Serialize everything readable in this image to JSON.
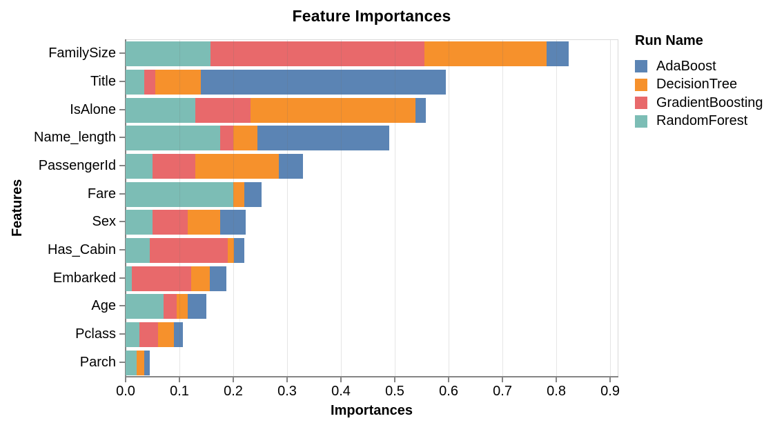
{
  "chart_data": {
    "type": "bar",
    "orientation": "horizontal",
    "stacked": true,
    "title": "Feature Importances",
    "xlabel": "Importances",
    "ylabel": "Features",
    "legend_title": "Run Name",
    "legend_position": "right",
    "grid": true,
    "xlim": [
      0,
      0.914
    ],
    "xticks": [
      0.0,
      0.1,
      0.2,
      0.3,
      0.4,
      0.5,
      0.6,
      0.7,
      0.8,
      0.9
    ],
    "xtick_labels": [
      "0.0",
      "0.1",
      "0.2",
      "0.3",
      "0.4",
      "0.5",
      "0.6",
      "0.7",
      "0.8",
      "0.9"
    ],
    "categories": [
      "FamilySize",
      "Title",
      "IsAlone",
      "Name_length",
      "PassengerId",
      "Fare",
      "Sex",
      "Has_Cabin",
      "Embarked",
      "Age",
      "Pclass",
      "Parch"
    ],
    "stack_order": [
      "RandomForest",
      "GradientBoosting",
      "DecisionTree",
      "AdaBoost"
    ],
    "series": [
      {
        "name": "AdaBoost",
        "color": "#5b84b4",
        "values": [
          0.041,
          0.455,
          0.019,
          0.245,
          0.045,
          0.032,
          0.048,
          0.02,
          0.03,
          0.035,
          0.016,
          0.01
        ]
      },
      {
        "name": "DecisionTree",
        "color": "#f6912c",
        "values": [
          0.227,
          0.085,
          0.307,
          0.045,
          0.155,
          0.02,
          0.06,
          0.011,
          0.035,
          0.02,
          0.03,
          0.015
        ]
      },
      {
        "name": "GradientBoosting",
        "color": "#e8696b",
        "values": [
          0.397,
          0.02,
          0.102,
          0.025,
          0.08,
          0.0,
          0.065,
          0.145,
          0.11,
          0.025,
          0.035,
          0.0
        ]
      },
      {
        "name": "RandomForest",
        "color": "#7cbdb5",
        "values": [
          0.158,
          0.035,
          0.13,
          0.175,
          0.05,
          0.2,
          0.05,
          0.045,
          0.012,
          0.07,
          0.025,
          0.02
        ]
      }
    ]
  }
}
